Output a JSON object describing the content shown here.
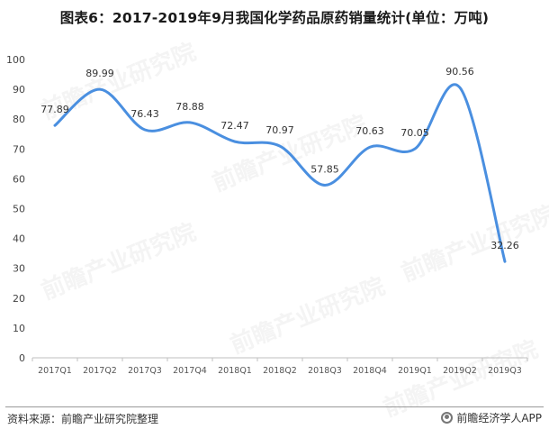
{
  "title": "图表6：2017-2019年9月我国化学药品原药销量统计(单位：万吨)",
  "source": "资料来源：前瞻产业研究院整理",
  "brand": "前瞻经济学人APP",
  "watermark": "前瞻产业研究院",
  "colors": {
    "line": "#4a8fe0",
    "axis": "#bfbfbf",
    "text": "#444444"
  },
  "chart_data": {
    "type": "line",
    "categories": [
      "2017Q1",
      "2017Q2",
      "2017Q3",
      "2017Q4",
      "2018Q1",
      "2018Q2",
      "2018Q3",
      "2018Q4",
      "2019Q1",
      "2019Q2",
      "2019Q3"
    ],
    "values": [
      77.89,
      89.99,
      76.43,
      78.88,
      72.47,
      70.97,
      57.85,
      70.63,
      70.05,
      90.56,
      32.26
    ],
    "labels": [
      "77.89",
      "89.99",
      "76.43",
      "78.88",
      "72.47",
      "70.97",
      "57.85",
      "70.63",
      "70.05",
      "90.56",
      "32.26"
    ],
    "ylim": [
      0,
      100
    ],
    "yticks": [
      0,
      10,
      20,
      30,
      40,
      50,
      60,
      70,
      80,
      90,
      100
    ],
    "grid": false,
    "legend": "none",
    "smooth": true
  }
}
